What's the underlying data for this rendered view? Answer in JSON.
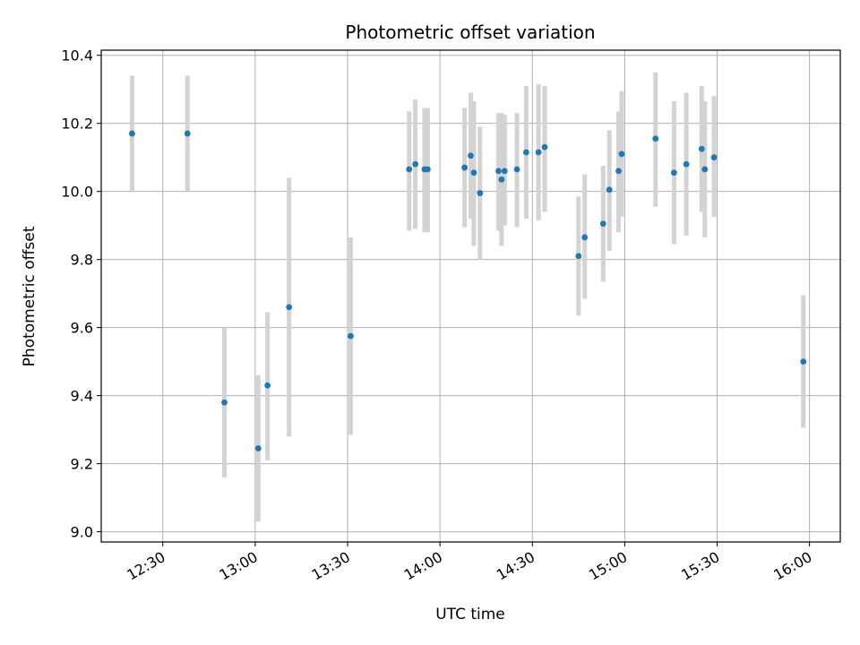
{
  "chart_data": {
    "type": "scatter",
    "title": "Photometric offset variation",
    "xlabel": "UTC time",
    "ylabel": "Photometric offset",
    "xlim": [
      "12:10",
      "16:10"
    ],
    "ylim": [
      8.97,
      10.415
    ],
    "grid": true,
    "x_ticks": [
      "12:30",
      "13:00",
      "13:30",
      "14:00",
      "14:30",
      "15:00",
      "15:30",
      "16:00"
    ],
    "y_ticks": [
      "9.0",
      "9.2",
      "9.4",
      "9.6",
      "9.8",
      "10.0",
      "10.2",
      "10.4"
    ],
    "y_tick_values": [
      9.0,
      9.2,
      9.4,
      9.6,
      9.8,
      10.0,
      10.2,
      10.4
    ],
    "colors": {
      "point": "#1f77b4",
      "errorbar": "#d3d3d3",
      "grid": "#b0b0b0"
    },
    "points": [
      {
        "x": "12:20",
        "y": 10.17,
        "lo": 10.0,
        "hi": 10.34
      },
      {
        "x": "12:38",
        "y": 10.17,
        "lo": 10.0,
        "hi": 10.34
      },
      {
        "x": "12:50",
        "y": 9.38,
        "lo": 9.16,
        "hi": 9.6
      },
      {
        "x": "13:01",
        "y": 9.245,
        "lo": 9.03,
        "hi": 9.46
      },
      {
        "x": "13:04",
        "y": 9.43,
        "lo": 9.21,
        "hi": 9.645
      },
      {
        "x": "13:11",
        "y": 9.66,
        "lo": 9.28,
        "hi": 10.04
      },
      {
        "x": "13:31",
        "y": 9.575,
        "lo": 9.285,
        "hi": 9.865
      },
      {
        "x": "13:50",
        "y": 10.065,
        "lo": 9.885,
        "hi": 10.235
      },
      {
        "x": "13:52",
        "y": 10.08,
        "lo": 9.89,
        "hi": 10.27
      },
      {
        "x": "13:55",
        "y": 10.065,
        "lo": 9.88,
        "hi": 10.245
      },
      {
        "x": "13:56",
        "y": 10.065,
        "lo": 9.88,
        "hi": 10.245
      },
      {
        "x": "14:08",
        "y": 10.07,
        "lo": 9.895,
        "hi": 10.245
      },
      {
        "x": "14:10",
        "y": 10.105,
        "lo": 9.92,
        "hi": 10.29
      },
      {
        "x": "14:11",
        "y": 10.055,
        "lo": 9.84,
        "hi": 10.265
      },
      {
        "x": "14:13",
        "y": 9.995,
        "lo": 9.8,
        "hi": 10.19
      },
      {
        "x": "14:19",
        "y": 10.06,
        "lo": 9.885,
        "hi": 10.23
      },
      {
        "x": "14:20",
        "y": 10.035,
        "lo": 9.84,
        "hi": 10.23
      },
      {
        "x": "14:21",
        "y": 10.06,
        "lo": 9.9,
        "hi": 10.225
      },
      {
        "x": "14:25",
        "y": 10.065,
        "lo": 9.895,
        "hi": 10.23
      },
      {
        "x": "14:28",
        "y": 10.115,
        "lo": 9.92,
        "hi": 10.31
      },
      {
        "x": "14:32",
        "y": 10.115,
        "lo": 9.915,
        "hi": 10.315
      },
      {
        "x": "14:34",
        "y": 10.13,
        "lo": 9.94,
        "hi": 10.31
      },
      {
        "x": "14:45",
        "y": 9.81,
        "lo": 9.635,
        "hi": 9.985
      },
      {
        "x": "14:47",
        "y": 9.865,
        "lo": 9.685,
        "hi": 10.05
      },
      {
        "x": "14:53",
        "y": 9.905,
        "lo": 9.735,
        "hi": 10.075
      },
      {
        "x": "14:55",
        "y": 10.005,
        "lo": 9.825,
        "hi": 10.18
      },
      {
        "x": "14:58",
        "y": 10.06,
        "lo": 9.88,
        "hi": 10.235
      },
      {
        "x": "14:59",
        "y": 10.11,
        "lo": 9.925,
        "hi": 10.295
      },
      {
        "x": "15:10",
        "y": 10.155,
        "lo": 9.955,
        "hi": 10.35
      },
      {
        "x": "15:16",
        "y": 10.055,
        "lo": 9.845,
        "hi": 10.265
      },
      {
        "x": "15:20",
        "y": 10.08,
        "lo": 9.87,
        "hi": 10.29
      },
      {
        "x": "15:25",
        "y": 10.125,
        "lo": 9.94,
        "hi": 10.31
      },
      {
        "x": "15:26",
        "y": 10.065,
        "lo": 9.865,
        "hi": 10.265
      },
      {
        "x": "15:29",
        "y": 10.1,
        "lo": 9.925,
        "hi": 10.28
      },
      {
        "x": "15:58",
        "y": 9.5,
        "lo": 9.305,
        "hi": 9.695
      }
    ]
  }
}
